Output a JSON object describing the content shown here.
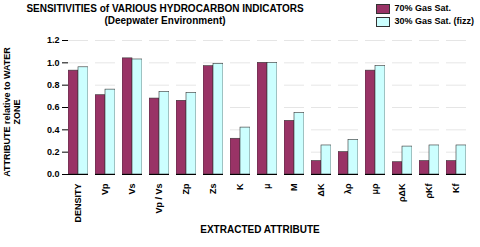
{
  "chart_data": {
    "type": "bar",
    "title": "SENSITIVITIES of VARIOUS HYDROCARBON INDICATORS",
    "subtitle": "(Deepwater Environment)",
    "x_label": "EXTRACTED ATTRIBUTE",
    "y_label": "ATTRIBUTE relative to WATER ZONE",
    "categories": [
      "DENSITY",
      "Vp",
      "Vs",
      "Vp / Vs",
      "Zp",
      "Zs",
      "K",
      "μ",
      "M",
      "ΔK",
      "λρ",
      "μρ",
      "ρΔK",
      "ρKf",
      "Kf"
    ],
    "series": [
      {
        "name": "70% Gas Sat.",
        "color": "#993366",
        "values": [
          0.93,
          0.71,
          1.04,
          0.68,
          0.66,
          0.97,
          0.32,
          1.0,
          0.48,
          0.12,
          0.2,
          0.93,
          0.11,
          0.12,
          0.12
        ]
      },
      {
        "name": "30% Gas Sat. (fizz)",
        "color": "#ccffff",
        "values": [
          0.96,
          0.76,
          1.03,
          0.74,
          0.73,
          0.99,
          0.42,
          1.0,
          0.55,
          0.26,
          0.31,
          0.97,
          0.25,
          0.26,
          0.26
        ]
      }
    ],
    "ylim": [
      0,
      1.2
    ],
    "yticks": [
      {
        "value": 0,
        "label": "0.0"
      },
      {
        "value": 0.2,
        "label": "0.2"
      },
      {
        "value": 0.4,
        "label": "0.4"
      },
      {
        "value": 0.6,
        "label": "0.6"
      },
      {
        "value": 0.8,
        "label": "0.8"
      },
      {
        "value": 1.0,
        "label": "1.0"
      },
      {
        "value": 1.2,
        "label": "1.2"
      }
    ],
    "grid": true,
    "legend": "top-right"
  }
}
